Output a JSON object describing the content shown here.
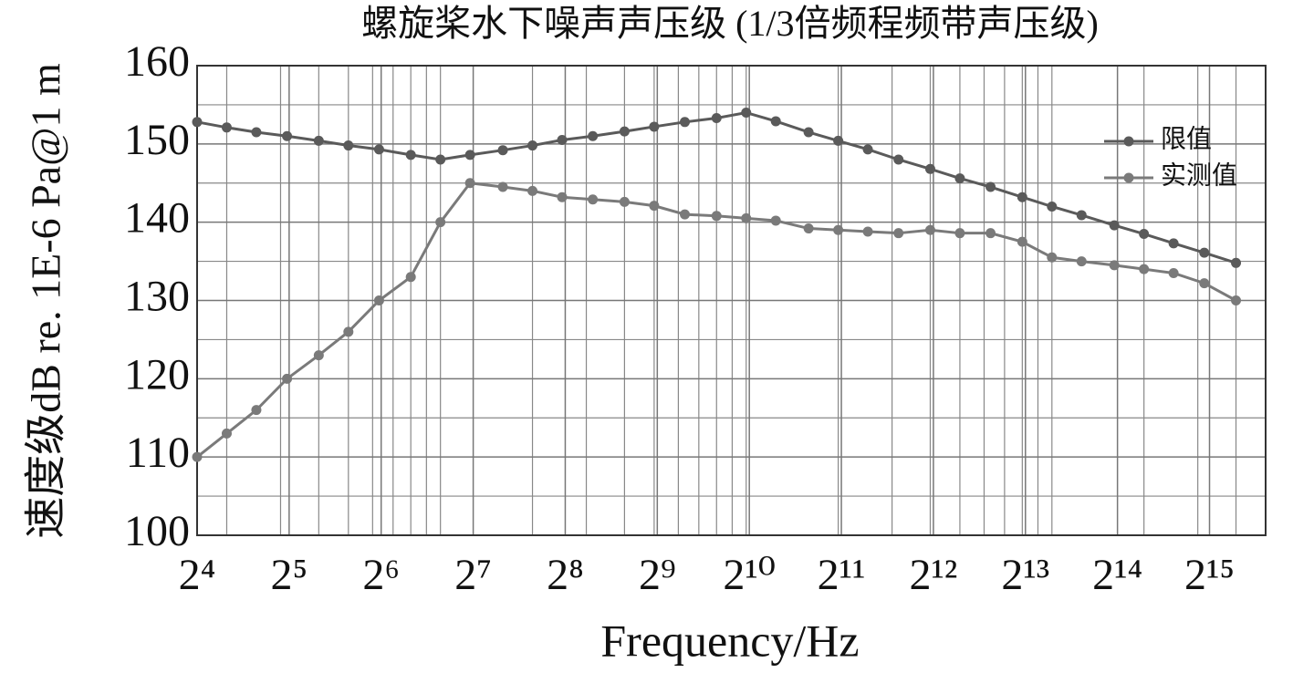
{
  "chart_data": {
    "type": "line",
    "title": "螺旋桨水下噪声声压级 (1/3倍频程频带声压级)",
    "x_label": "Frequency/Hz",
    "y_label": "速度级dB re. 1E-6 Pa@1 m",
    "x": [
      16,
      20,
      25,
      31.5,
      40,
      50,
      63,
      80,
      100,
      125,
      160,
      200,
      250,
      315,
      400,
      500,
      630,
      800,
      1000,
      1250,
      1600,
      2000,
      2500,
      3150,
      4000,
      5000,
      6300,
      8000,
      10000,
      12500,
      16000,
      20000,
      25000,
      31500,
      40000
    ],
    "series": [
      {
        "name": "限值",
        "color": "#5a5a5a",
        "values": [
          152.8,
          152.1,
          151.5,
          151,
          150.4,
          149.8,
          149.3,
          148.6,
          148,
          148.6,
          149.2,
          149.8,
          150.5,
          151,
          151.6,
          152.2,
          152.8,
          153.3,
          154,
          152.9,
          151.5,
          150.4,
          149.3,
          148,
          146.8,
          145.6,
          144.5,
          143.2,
          142,
          140.9,
          139.6,
          138.5,
          137.3,
          136.1,
          134.8
        ]
      },
      {
        "name": "实测值",
        "color": "#7a7a7a",
        "values": [
          110,
          113,
          116,
          120,
          123,
          126,
          130,
          133,
          140,
          145,
          144.5,
          144,
          143.2,
          142.9,
          142.6,
          142.1,
          141,
          140.8,
          140.5,
          140.2,
          139.2,
          139,
          138.8,
          138.6,
          139,
          138.6,
          138.6,
          137.5,
          135.5,
          135,
          134.5,
          134,
          133.5,
          132.2,
          130
        ]
      }
    ],
    "xscale": "log",
    "xlim": [
      16,
      50000
    ],
    "xticks": [
      {
        "value": 16,
        "label": "2⁴"
      },
      {
        "value": 32,
        "label": "2⁵"
      },
      {
        "value": 64,
        "label": "2⁶"
      },
      {
        "value": 128,
        "label": "2⁷"
      },
      {
        "value": 256,
        "label": "2⁸"
      },
      {
        "value": 512,
        "label": "2⁹"
      },
      {
        "value": 1024,
        "label": "2¹⁰"
      },
      {
        "value": 2048,
        "label": "2¹¹"
      },
      {
        "value": 4096,
        "label": "2¹²"
      },
      {
        "value": 8192,
        "label": "2¹³"
      },
      {
        "value": 16384,
        "label": "2¹⁴"
      },
      {
        "value": 32768,
        "label": "2¹⁵"
      }
    ],
    "xgrid_minor": [
      20,
      30,
      40,
      50,
      60,
      70,
      80,
      90,
      100,
      200,
      300,
      400,
      500,
      600,
      700,
      800,
      900,
      1000,
      2000,
      3000,
      4000,
      5000,
      6000,
      7000,
      8000,
      9000,
      10000,
      20000,
      30000,
      40000
    ],
    "ylim": [
      100,
      160
    ],
    "yticks": [
      100,
      110,
      120,
      130,
      140,
      150,
      160
    ],
    "ygrid_minor": [
      105,
      115,
      125,
      135,
      145,
      155
    ],
    "grid": true,
    "legend": "upper right"
  }
}
